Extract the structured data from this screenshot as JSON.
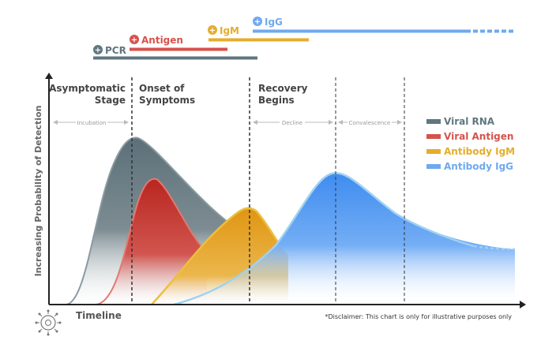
{
  "test_bars": [
    {
      "key": "pcr",
      "label": "PCR",
      "symbol": "+",
      "color": "#5f7780"
    },
    {
      "key": "antigen",
      "label": "Antigen",
      "symbol": "+",
      "color": "#d6524c"
    },
    {
      "key": "igm",
      "label": "IgM",
      "symbol": "+",
      "color": "#e6ad2c"
    },
    {
      "key": "igg",
      "label": "IgG",
      "symbol": "+",
      "color": "#6fa9ef"
    }
  ],
  "phases": {
    "asymptomatic": [
      "Asymptomatic",
      "Stage"
    ],
    "onset": [
      "Onset of",
      "Symptoms"
    ],
    "recovery": [
      "Recovery",
      "Begins"
    ]
  },
  "periods": {
    "incubation": "Incubation",
    "decline": "Decline",
    "convalescence": "Convalescence"
  },
  "legend": [
    {
      "label": "Viral RNA",
      "color": "#5f7780"
    },
    {
      "label": "Viral Antigen",
      "color": "#d6524c"
    },
    {
      "label": "Antibody IgM",
      "color": "#e6ad2c"
    },
    {
      "label": "Antibody IgG",
      "color": "#6fa9ef"
    }
  ],
  "axes": {
    "y_label": "Increasing Probability of Detection",
    "x_label": "Timeline"
  },
  "disclaimer": "*Disclaimer: This chart is only for illustrative purposes only"
}
